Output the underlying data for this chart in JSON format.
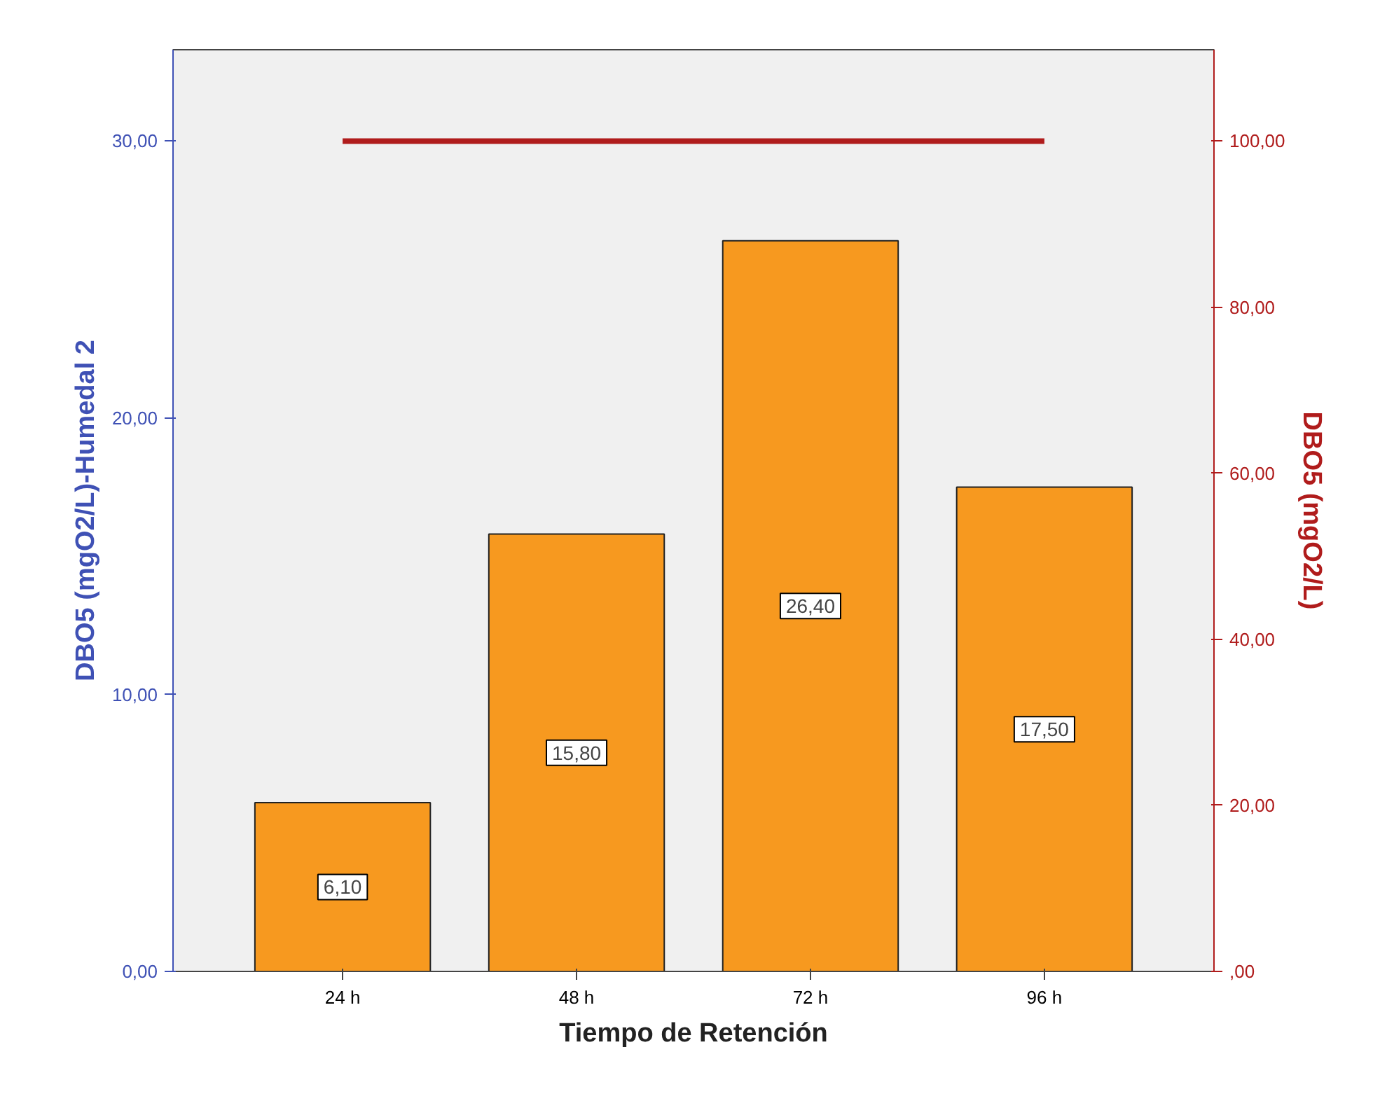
{
  "chart_data": {
    "type": "bar",
    "xlabel": "Tiempo de Retención",
    "ylabel": "DBO5 (mgO2/L)-Humedal 2",
    "y2label": "DBO5 (mgO2/L)",
    "categories": [
      "24 h",
      "48 h",
      "72 h",
      "96 h"
    ],
    "series": [
      {
        "color": "#f7991f",
        "values": [
          6.1,
          15.8,
          26.4,
          17.5
        ],
        "value_labels": [
          "6,10",
          "15,80",
          "26,40",
          "17,50"
        ]
      },
      {
        "type": "line",
        "axis": "y2",
        "color": "#b01c1c",
        "values": [
          100,
          100,
          100,
          100
        ]
      }
    ],
    "ylim": [
      0,
      33.3
    ],
    "yticks": [
      {
        "value": 0,
        "label": "0,00"
      },
      {
        "value": 10,
        "label": "10,00"
      },
      {
        "value": 20,
        "label": "20,00"
      },
      {
        "value": 30,
        "label": "30,00"
      }
    ],
    "y2lim": [
      0,
      111
    ],
    "y2ticks": [
      {
        "value": 0,
        "label": ",00"
      },
      {
        "value": 20,
        "label": "20,00"
      },
      {
        "value": 40,
        "label": "40,00"
      },
      {
        "value": 60,
        "label": "60,00"
      },
      {
        "value": 80,
        "label": "80,00"
      },
      {
        "value": 100,
        "label": "100,00"
      }
    ],
    "grid": false,
    "marker": "none",
    "line_style": "solid"
  }
}
